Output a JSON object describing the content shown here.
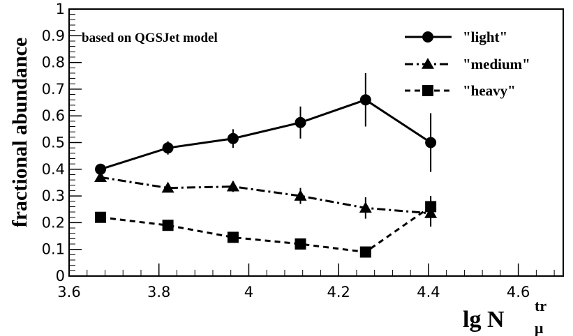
{
  "chart_data": {
    "type": "line",
    "title": "",
    "xlabel": "lg N",
    "xlabel_superscript": "tr",
    "xlabel_subscript": "μ",
    "ylabel": "fractional abundance",
    "annotation": "based on QGSJet model",
    "xlim": [
      3.6,
      4.7
    ],
    "ylim": [
      0,
      1
    ],
    "x_ticks": [
      "3.6",
      "3.8",
      "4",
      "4.2",
      "4.4",
      "4.6"
    ],
    "y_ticks": [
      "0",
      "0.1",
      "0.2",
      "0.3",
      "0.4",
      "0.5",
      "0.6",
      "0.7",
      "0.8",
      "0.9",
      "1"
    ],
    "grid": false,
    "legend_position": "top-right",
    "x": [
      3.67,
      3.82,
      3.965,
      4.115,
      4.26,
      4.405
    ],
    "series": [
      {
        "name": "\"light\"",
        "marker": "circle",
        "line_style": "solid",
        "values": [
          0.4,
          0.48,
          0.515,
          0.575,
          0.66,
          0.5
        ],
        "errors": [
          0.015,
          0.025,
          0.035,
          0.06,
          0.1,
          0.11
        ]
      },
      {
        "name": "\"medium\"",
        "marker": "triangle",
        "line_style": "dash-dot",
        "values": [
          0.37,
          0.33,
          0.335,
          0.3,
          0.255,
          0.235
        ],
        "errors": [
          0.012,
          0.015,
          0.02,
          0.03,
          0.04,
          0.05
        ]
      },
      {
        "name": "\"heavy\"",
        "marker": "square",
        "line_style": "dashed",
        "values": [
          0.22,
          0.19,
          0.145,
          0.12,
          0.09,
          0.26
        ],
        "errors": [
          0.008,
          0.01,
          0.012,
          0.015,
          0.02,
          0.04
        ]
      }
    ]
  }
}
